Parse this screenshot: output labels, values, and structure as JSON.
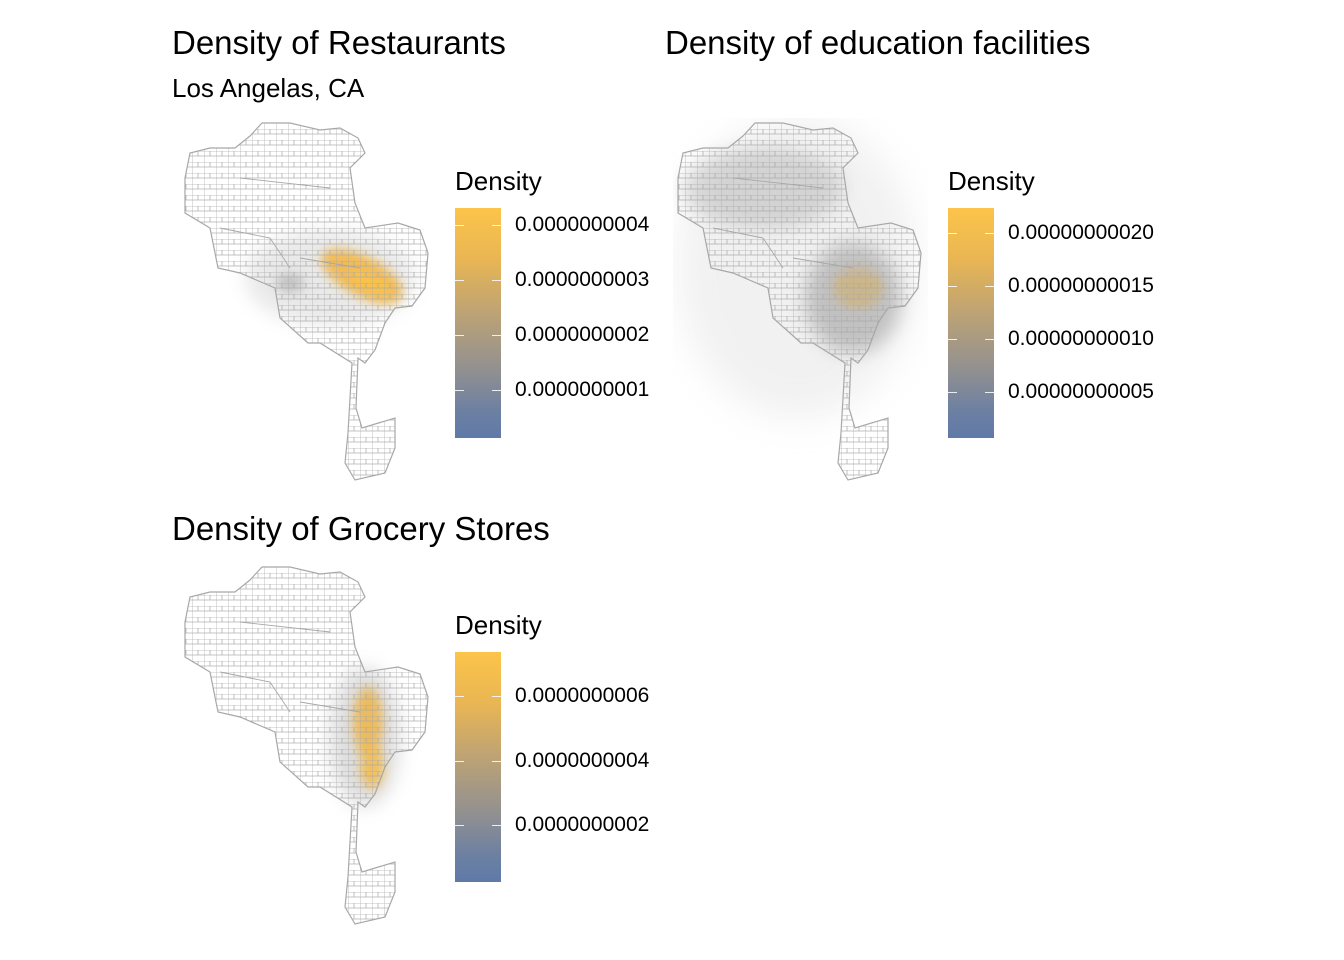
{
  "panels": [
    {
      "id": "restaurants",
      "title": "Density of Restaurants",
      "subtitle": "Los Angelas, CA",
      "legend_title": "Density",
      "ticks": [
        "0.0000000004",
        "0.0000000003",
        "0.0000000002",
        "0.0000000001"
      ],
      "tick_values": [
        4e-10,
        3e-10,
        2e-10,
        1e-10
      ],
      "density_pattern": "concentrated elongated hotspot in central-east area"
    },
    {
      "id": "education",
      "title": "Density of education facilities",
      "subtitle": "",
      "legend_title": "Density",
      "ticks": [
        "0.00000000020",
        "0.00000000015",
        "0.00000000010",
        "0.00000000005"
      ],
      "tick_values": [
        2e-10,
        1.5e-10,
        1e-10,
        5e-11
      ],
      "density_pattern": "broad diffuse haze with stronger cluster in south-central area"
    },
    {
      "id": "grocery",
      "title": "Density of Grocery Stores",
      "subtitle": "",
      "legend_title": "Density",
      "ticks": [
        "0.0000000006",
        "0.0000000004",
        "0.0000000002"
      ],
      "tick_values": [
        6e-10,
        4e-10,
        2e-10
      ],
      "density_pattern": "vertical hotspot along central corridor"
    }
  ],
  "colors": {
    "scale_high": "#fcc44a",
    "scale_mid": "#a59b86",
    "scale_low": "#5f7aa8",
    "boundary": "#a8a8a8",
    "background": "#ffffff"
  }
}
